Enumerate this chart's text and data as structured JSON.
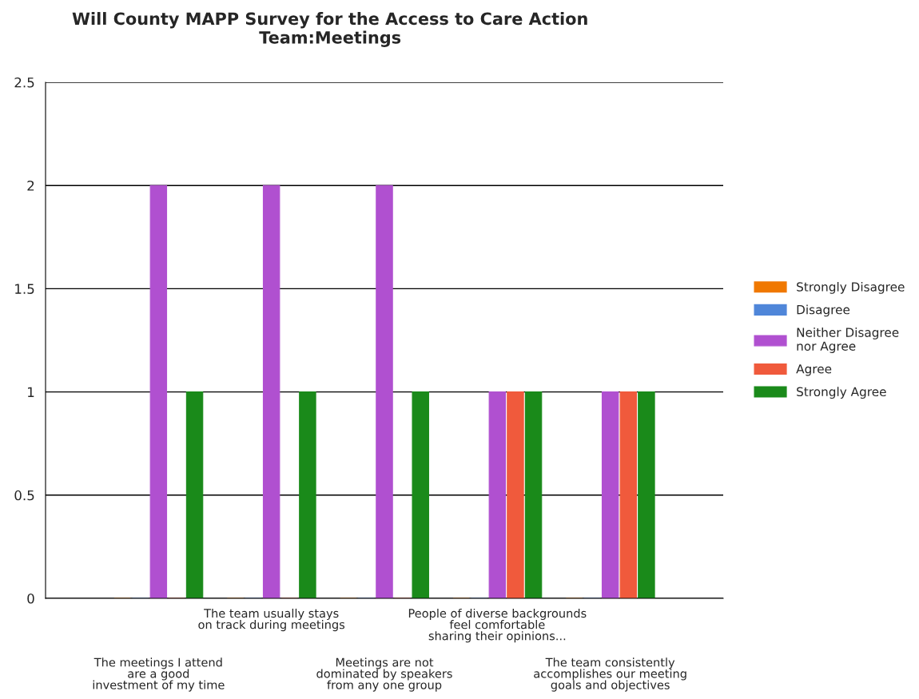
{
  "chart_data": {
    "type": "bar",
    "title": "Will County MAPP Survey for the Access to Care Action\nTeam:Meetings",
    "categories": [
      "The meetings I attend\nare a good\ninvestment of my time",
      "The team usually stays\non track during meetings",
      "Meetings are not\ndominated by speakers\nfrom any one group",
      "People of diverse backgrounds\nfeel comfortable\nsharing their opinions...",
      "The team consistently\naccomplishes our meeting\ngoals and objectives"
    ],
    "series": [
      {
        "name": "Strongly Disagree",
        "color": "#f07800",
        "values": [
          0,
          0,
          0,
          0,
          0
        ]
      },
      {
        "name": "Disagree",
        "color": "#4f86d9",
        "values": [
          0,
          0,
          0,
          0,
          0
        ]
      },
      {
        "name": "Neither Disagree\nnor Agree",
        "color": "#b050d0",
        "values": [
          2,
          2,
          2,
          1,
          1
        ]
      },
      {
        "name": "Agree",
        "color": "#f05a3c",
        "values": [
          0,
          0,
          0,
          1,
          1
        ]
      },
      {
        "name": "Strongly Agree",
        "color": "#1a8a1a",
        "values": [
          1,
          1,
          1,
          1,
          1
        ]
      }
    ],
    "ylim": [
      0,
      2.5
    ],
    "yticks": [
      0,
      0.5,
      1,
      1.5,
      2,
      2.5
    ],
    "grid": "y",
    "legend": "right"
  }
}
